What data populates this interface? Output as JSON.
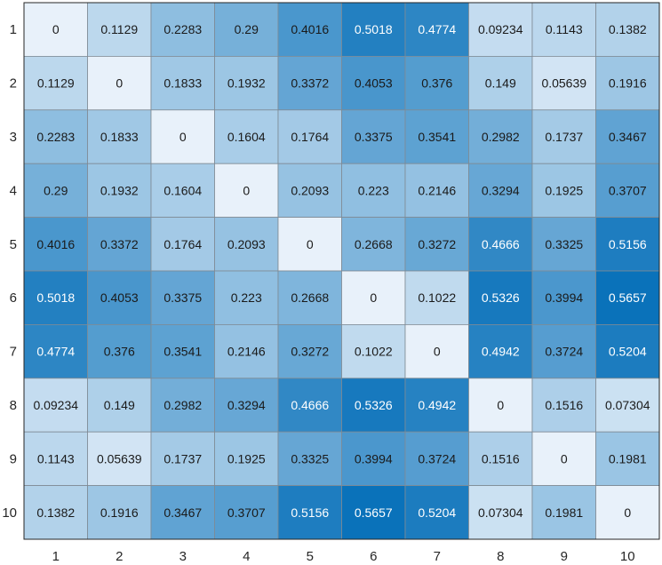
{
  "chart_data": {
    "type": "heatmap",
    "title": "",
    "xlabel": "",
    "ylabel": "",
    "x_categories": [
      "1",
      "2",
      "3",
      "4",
      "5",
      "6",
      "7",
      "8",
      "9",
      "10"
    ],
    "y_categories": [
      "1",
      "2",
      "3",
      "4",
      "5",
      "6",
      "7",
      "8",
      "9",
      "10"
    ],
    "colormap": {
      "low": "#e8f1fa",
      "high": "#0a72ba"
    },
    "values": [
      [
        "0",
        "0.1129",
        "0.2283",
        "0.29",
        "0.4016",
        "0.5018",
        "0.4774",
        "0.09234",
        "0.1143",
        "0.1382"
      ],
      [
        "0.1129",
        "0",
        "0.1833",
        "0.1932",
        "0.3372",
        "0.4053",
        "0.376",
        "0.149",
        "0.05639",
        "0.1916"
      ],
      [
        "0.2283",
        "0.1833",
        "0",
        "0.1604",
        "0.1764",
        "0.3375",
        "0.3541",
        "0.2982",
        "0.1737",
        "0.3467"
      ],
      [
        "0.29",
        "0.1932",
        "0.1604",
        "0",
        "0.2093",
        "0.223",
        "0.2146",
        "0.3294",
        "0.1925",
        "0.3707"
      ],
      [
        "0.4016",
        "0.3372",
        "0.1764",
        "0.2093",
        "0",
        "0.2668",
        "0.3272",
        "0.4666",
        "0.3325",
        "0.5156"
      ],
      [
        "0.5018",
        "0.4053",
        "0.3375",
        "0.223",
        "0.2668",
        "0",
        "0.1022",
        "0.5326",
        "0.3994",
        "0.5657"
      ],
      [
        "0.4774",
        "0.376",
        "0.3541",
        "0.2146",
        "0.3272",
        "0.1022",
        "0",
        "0.4942",
        "0.3724",
        "0.5204"
      ],
      [
        "0.09234",
        "0.149",
        "0.2982",
        "0.3294",
        "0.4666",
        "0.5326",
        "0.4942",
        "0",
        "0.1516",
        "0.07304"
      ],
      [
        "0.1143",
        "0.05639",
        "0.1737",
        "0.1925",
        "0.3325",
        "0.3994",
        "0.3724",
        "0.1516",
        "0",
        "0.1981"
      ],
      [
        "0.1382",
        "0.1916",
        "0.3467",
        "0.3707",
        "0.5156",
        "0.5657",
        "0.5204",
        "0.07304",
        "0.1981",
        "0"
      ]
    ]
  }
}
